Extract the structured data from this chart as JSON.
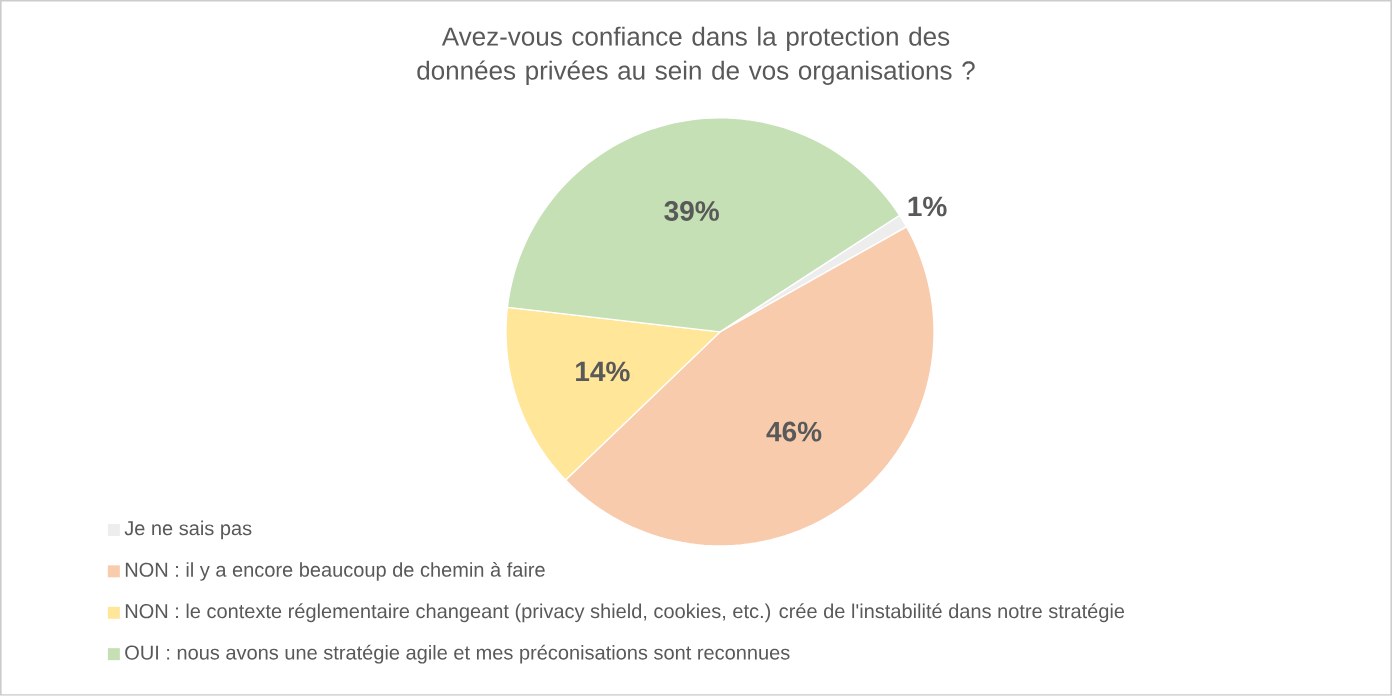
{
  "chart_data": {
    "type": "pie",
    "title": "Avez-vous confiance dans la protection des données privées au sein de vos organisations ?",
    "categories": [
      "Je ne sais pas",
      "NON : il y a encore beaucoup de chemin à faire",
      "NON : le contexte réglementaire changeant (privacy shield, cookies, etc.) crée de l'instabilité dans notre stratégie",
      "OUI : nous avons une stratégie agile et mes préconisations sont reconnues"
    ],
    "values": [
      1,
      46,
      14,
      39
    ],
    "value_labels": [
      "1%",
      "46%",
      "14%",
      "39%"
    ],
    "colors": [
      "#ededed",
      "#f8cbad",
      "#ffe699",
      "#c5e0b4"
    ],
    "legend": "bottom left"
  }
}
